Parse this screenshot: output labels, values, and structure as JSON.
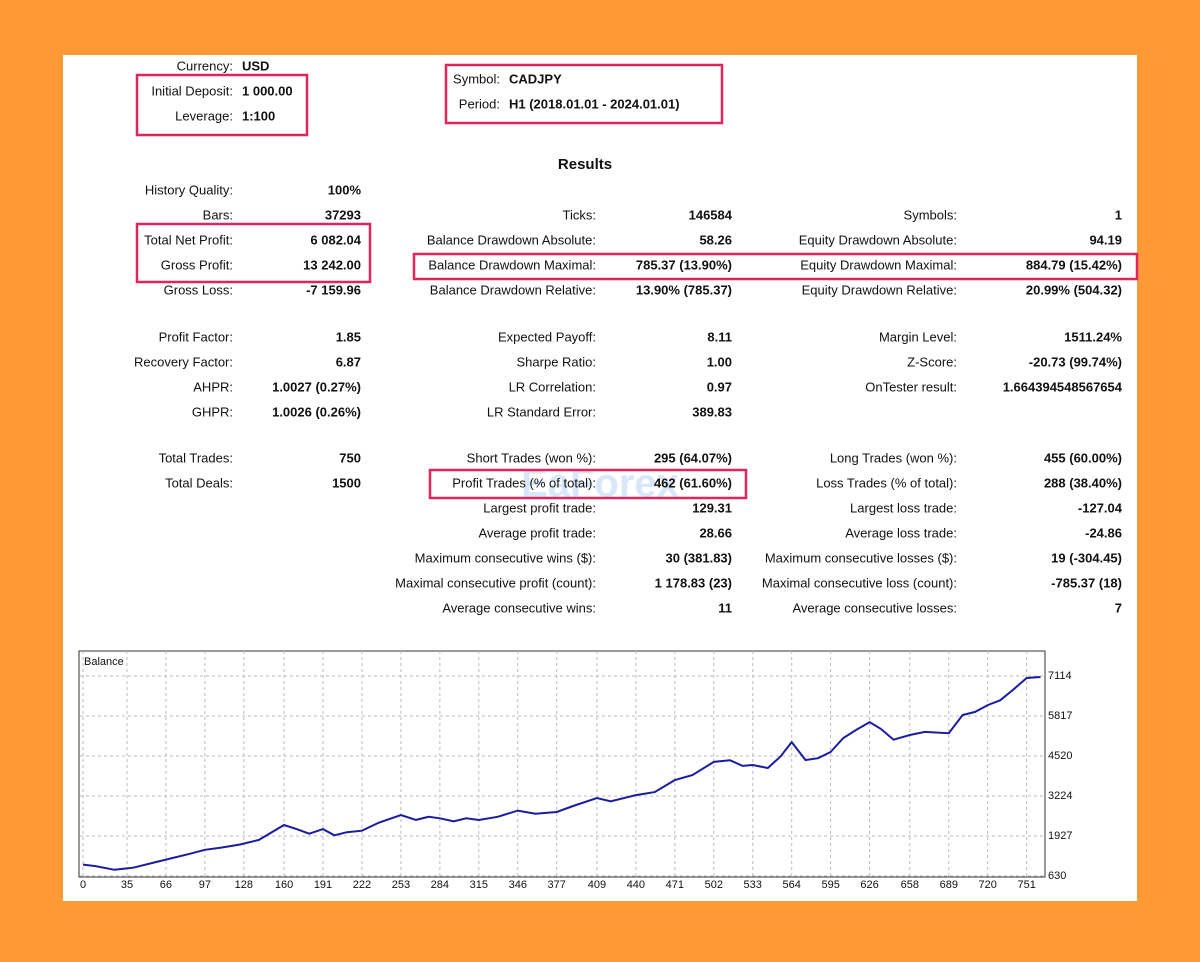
{
  "header": {
    "left": [
      {
        "label": "Currency:",
        "value": "USD"
      },
      {
        "label": "Initial Deposit:",
        "value": "1 000.00"
      },
      {
        "label": "Leverage:",
        "value": "1:100"
      }
    ],
    "right": [
      {
        "label": "Symbol:",
        "value": "CADJPY"
      },
      {
        "label": "Period:",
        "value": "H1 (2018.01.01 - 2024.01.01)"
      }
    ]
  },
  "results": {
    "title": "Results",
    "sections": [
      {
        "rows": [
          [
            {
              "label": "History Quality:",
              "value": "100%"
            },
            null,
            null
          ],
          [
            {
              "label": "Bars:",
              "value": "37293"
            },
            {
              "label": "Ticks:",
              "value": "146584"
            },
            {
              "label": "Symbols:",
              "value": "1"
            }
          ],
          [
            {
              "label": "Total Net Profit:",
              "value": "6 082.04"
            },
            {
              "label": "Balance Drawdown Absolute:",
              "value": "58.26"
            },
            {
              "label": "Equity Drawdown Absolute:",
              "value": "94.19"
            }
          ],
          [
            {
              "label": "Gross Profit:",
              "value": "13 242.00"
            },
            {
              "label": "Balance Drawdown Maximal:",
              "value": "785.37 (13.90%)"
            },
            {
              "label": "Equity Drawdown Maximal:",
              "value": "884.79 (15.42%)"
            }
          ],
          [
            {
              "label": "Gross Loss:",
              "value": "-7 159.96"
            },
            {
              "label": "Balance Drawdown Relative:",
              "value": "13.90% (785.37)"
            },
            {
              "label": "Equity Drawdown Relative:",
              "value": "20.99% (504.32)"
            }
          ]
        ]
      },
      {
        "rows": [
          [
            {
              "label": "Profit Factor:",
              "value": "1.85"
            },
            {
              "label": "Expected Payoff:",
              "value": "8.11"
            },
            {
              "label": "Margin Level:",
              "value": "1511.24%"
            }
          ],
          [
            {
              "label": "Recovery Factor:",
              "value": "6.87"
            },
            {
              "label": "Sharpe Ratio:",
              "value": "1.00"
            },
            {
              "label": "Z-Score:",
              "value": "-20.73 (99.74%)"
            }
          ],
          [
            {
              "label": "AHPR:",
              "value": "1.0027 (0.27%)"
            },
            {
              "label": "LR Correlation:",
              "value": "0.97"
            },
            {
              "label": "OnTester result:",
              "value": "1.664394548567654"
            }
          ],
          [
            {
              "label": "GHPR:",
              "value": "1.0026 (0.26%)"
            },
            {
              "label": "LR Standard Error:",
              "value": "389.83"
            },
            null
          ]
        ]
      },
      {
        "rows": [
          [
            {
              "label": "Total Trades:",
              "value": "750"
            },
            {
              "label": "Short Trades (won %):",
              "value": "295 (64.07%)"
            },
            {
              "label": "Long Trades (won %):",
              "value": "455 (60.00%)"
            }
          ],
          [
            {
              "label": "Total Deals:",
              "value": "1500"
            },
            {
              "label": "Profit Trades (% of total):",
              "value": "462 (61.60%)"
            },
            {
              "label": "Loss Trades (% of total):",
              "value": "288 (38.40%)"
            }
          ],
          [
            null,
            {
              "label": "Largest profit trade:",
              "value": "129.31"
            },
            {
              "label": "Largest loss trade:",
              "value": "-127.04"
            }
          ],
          [
            null,
            {
              "label": "Average profit trade:",
              "value": "28.66"
            },
            {
              "label": "Average loss trade:",
              "value": "-24.86"
            }
          ],
          [
            null,
            {
              "label": "Maximum consecutive wins ($):",
              "value": "30 (381.83)"
            },
            {
              "label": "Maximum consecutive losses ($):",
              "value": "19 (-304.45)"
            }
          ],
          [
            null,
            {
              "label": "Maximal consecutive profit (count):",
              "value": "1 178.83 (23)"
            },
            {
              "label": "Maximal consecutive loss (count):",
              "value": "-785.37 (18)"
            }
          ],
          [
            null,
            {
              "label": "Average consecutive wins:",
              "value": "11"
            },
            {
              "label": "Average consecutive losses:",
              "value": "7"
            }
          ]
        ]
      }
    ]
  },
  "watermark": "EaForex",
  "chart": {
    "type": "line",
    "x": [
      0,
      10,
      25,
      40,
      55,
      70,
      85,
      97,
      110,
      125,
      140,
      160,
      170,
      180,
      191,
      200,
      210,
      222,
      235,
      253,
      265,
      275,
      284,
      295,
      305,
      315,
      330,
      346,
      360,
      377,
      390,
      409,
      420,
      440,
      455,
      471,
      485,
      502,
      515,
      525,
      533,
      545,
      555,
      564,
      575,
      585,
      595,
      605,
      615,
      626,
      635,
      645,
      658,
      670,
      689,
      700,
      710,
      720,
      730,
      740,
      751,
      762
    ],
    "series": [
      {
        "name": "Balance",
        "color": "#1c1ca0",
        "values": [
          1000,
          950,
          830,
          900,
          1050,
          1200,
          1350,
          1480,
          1550,
          1650,
          1800,
          2283,
          2150,
          2000,
          2150,
          1950,
          2050,
          2100,
          2350,
          2607,
          2450,
          2550,
          2500,
          2400,
          2500,
          2445,
          2550,
          2750,
          2650,
          2705,
          2900,
          3157,
          3050,
          3254,
          3350,
          3740,
          3900,
          4330,
          4380,
          4200,
          4230,
          4130,
          4500,
          4970,
          4390,
          4450,
          4650,
          5100,
          5360,
          5620,
          5400,
          5050,
          5200,
          5300,
          5260,
          5850,
          5950,
          6170,
          6330,
          6660,
          7050,
          7082
        ]
      }
    ],
    "xlim": [
      0,
      764
    ],
    "ylim": [
      630,
      7762
    ],
    "xticks": [
      0,
      35,
      66,
      97,
      128,
      160,
      191,
      222,
      253,
      284,
      315,
      346,
      377,
      409,
      440,
      471,
      502,
      533,
      564,
      595,
      626,
      658,
      689,
      720,
      751
    ],
    "yticks": [
      630,
      1927,
      3224,
      4520,
      5817,
      7114
    ],
    "grid": true
  }
}
